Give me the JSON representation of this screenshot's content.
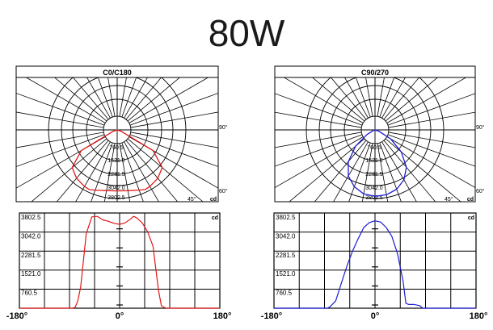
{
  "title": "80W",
  "polar_ring_labels": [
    "760.5",
    "1521.0",
    "2281.5",
    "3042.0",
    "3802.5"
  ],
  "polar_angle_labels": {
    "right": "90°",
    "lower_right": "60°",
    "bottom": "45°"
  },
  "unit": "cd",
  "colors": {
    "c0": "#e01818",
    "c90": "#1c1cd6",
    "grid": "#000000"
  },
  "chart_data": [
    {
      "type": "polar",
      "title": "C0/C180",
      "unit": "cd",
      "rings": [
        760.5,
        1521.0,
        2281.5,
        3042.0,
        3802.5
      ],
      "series": [
        {
          "name": "C0/C180",
          "angle": [
            -90,
            -80,
            -70,
            -60,
            -50,
            -40,
            -30,
            -25,
            -20,
            -10,
            0,
            10,
            20,
            25,
            30,
            40,
            50,
            60,
            70,
            80,
            90
          ],
          "value": [
            0,
            0,
            250,
            2300,
            3250,
            3500,
            3620,
            3650,
            3550,
            3420,
            3380,
            3420,
            3550,
            3650,
            3620,
            3500,
            3250,
            2300,
            250,
            0,
            0
          ]
        }
      ]
    },
    {
      "type": "polar",
      "title": "C90/270",
      "unit": "cd",
      "rings": [
        760.5,
        1521.0,
        2281.5,
        3042.0,
        3802.5
      ],
      "series": [
        {
          "name": "C90/270",
          "angle": [
            -90,
            -80,
            -70,
            -60,
            -50,
            -40,
            -30,
            -20,
            -10,
            0,
            10,
            20,
            30,
            40,
            50,
            60,
            70,
            80,
            90
          ],
          "value": [
            0,
            0,
            100,
            500,
            1400,
            2300,
            2950,
            3350,
            3600,
            3680,
            3650,
            3500,
            3200,
            2700,
            1900,
            1000,
            250,
            0,
            0
          ]
        }
      ]
    },
    {
      "type": "line",
      "unit": "cd",
      "xlim": [
        -180,
        180
      ],
      "ylim": [
        0,
        3802.5
      ],
      "yticks": [
        "760.5",
        "1521.0",
        "2281.5",
        "3042.0",
        "3802.5"
      ],
      "xticks": [
        "-180°",
        "0°",
        "180°"
      ],
      "x": [
        -180,
        -85,
        -80,
        -75,
        -70,
        -60,
        -50,
        -40,
        -30,
        -20,
        -10,
        0,
        10,
        20,
        25,
        30,
        40,
        50,
        60,
        70,
        75,
        80,
        85,
        180
      ],
      "series": [
        {
          "name": "C0/C180",
          "values": [
            0,
            0,
            30,
            300,
            850,
            3000,
            3680,
            3700,
            3560,
            3500,
            3420,
            3380,
            3440,
            3600,
            3700,
            3650,
            3450,
            3100,
            2500,
            700,
            100,
            30,
            0,
            0
          ]
        }
      ]
    },
    {
      "type": "line",
      "unit": "cd",
      "xlim": [
        -180,
        180
      ],
      "ylim": [
        0,
        3802.5
      ],
      "yticks": [
        "760.5",
        "1521.0",
        "2281.5",
        "3042.0",
        "3802.5"
      ],
      "xticks": [
        "-180°",
        "0°",
        "180°"
      ],
      "x": [
        -180,
        -85,
        -80,
        -70,
        -60,
        -50,
        -40,
        -30,
        -20,
        -10,
        0,
        10,
        20,
        30,
        40,
        50,
        55,
        60,
        70,
        80,
        85,
        180
      ],
      "series": [
        {
          "name": "C90/270",
          "values": [
            0,
            0,
            60,
            300,
            1000,
            1700,
            2300,
            2800,
            3250,
            3450,
            3520,
            3470,
            3250,
            2900,
            2200,
            1100,
            200,
            150,
            150,
            100,
            0,
            0
          ]
        }
      ]
    }
  ]
}
